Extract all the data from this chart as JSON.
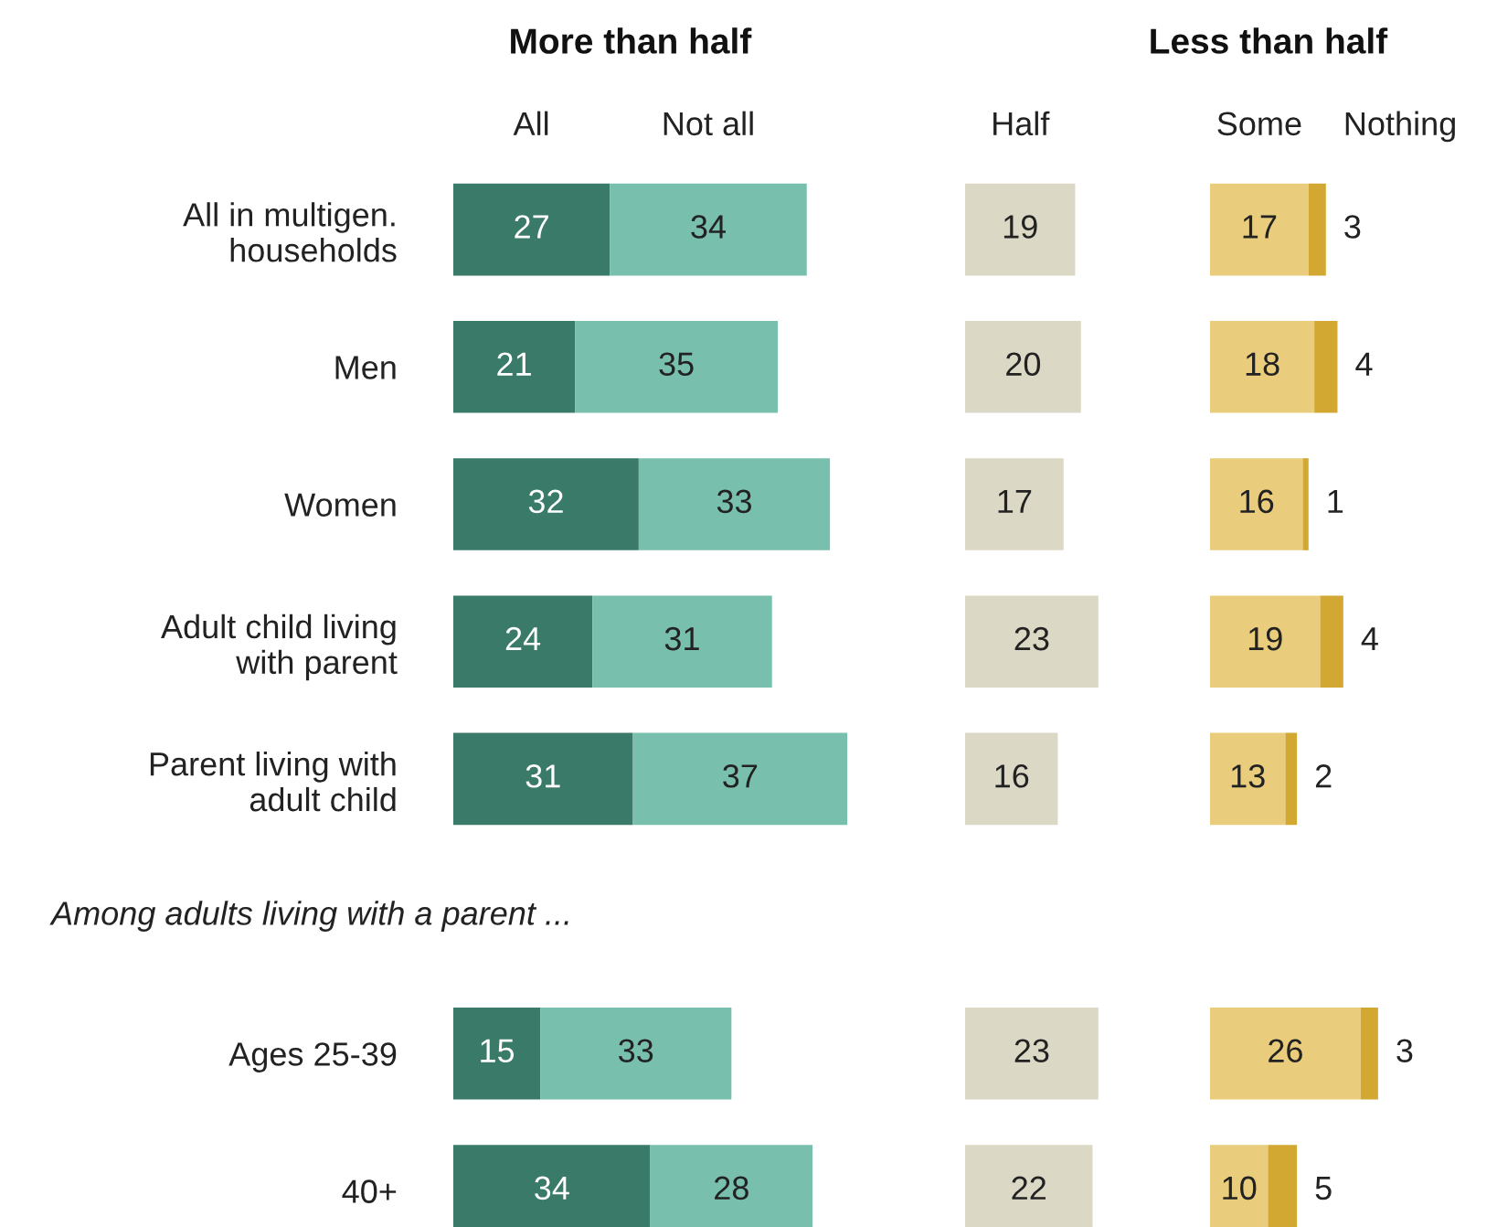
{
  "chart_data": [
    {
      "type": "bar",
      "orientation": "horizontal",
      "stacked": true,
      "title": "More than half",
      "data_labels": true,
      "tick_labels": "y",
      "categories": [
        "All in multigen.\nhouseholds",
        "Men",
        "Women",
        "Adult child living\nwith parent",
        "Parent living with\nadult child",
        null,
        "Ages 25-39",
        "40+"
      ],
      "series": [
        {
          "name": "All",
          "color": "#3a7a68",
          "values": [
            27,
            21,
            32,
            24,
            31,
            null,
            15,
            34
          ]
        },
        {
          "name": "Not all",
          "color": "#78bfad",
          "values": [
            34,
            35,
            33,
            31,
            37,
            null,
            33,
            28
          ]
        }
      ],
      "annotations": [
        "Among adults living with a parent ..."
      ]
    },
    {
      "type": "bar",
      "orientation": "horizontal",
      "data_labels": true,
      "tick_labels": false,
      "categories": [
        null,
        null,
        null,
        null,
        null,
        null,
        null,
        null
      ],
      "series": [
        {
          "name": "Half",
          "color": "#dcd8c6",
          "values": [
            19,
            20,
            17,
            23,
            16,
            null,
            23,
            22
          ]
        }
      ]
    },
    {
      "type": "bar",
      "orientation": "horizontal",
      "stacked": true,
      "title": "Less than half",
      "data_labels": true,
      "tick_labels": false,
      "categories": [
        null,
        null,
        null,
        null,
        null,
        null,
        null,
        null
      ],
      "series": [
        {
          "name": "Some",
          "color": "#e9cd7c",
          "values": [
            17,
            18,
            16,
            19,
            13,
            null,
            26,
            10
          ]
        },
        {
          "name": "Nothing",
          "color": "#d2a832",
          "values": [
            3,
            4,
            1,
            4,
            2,
            null,
            3,
            5
          ]
        }
      ]
    }
  ]
}
